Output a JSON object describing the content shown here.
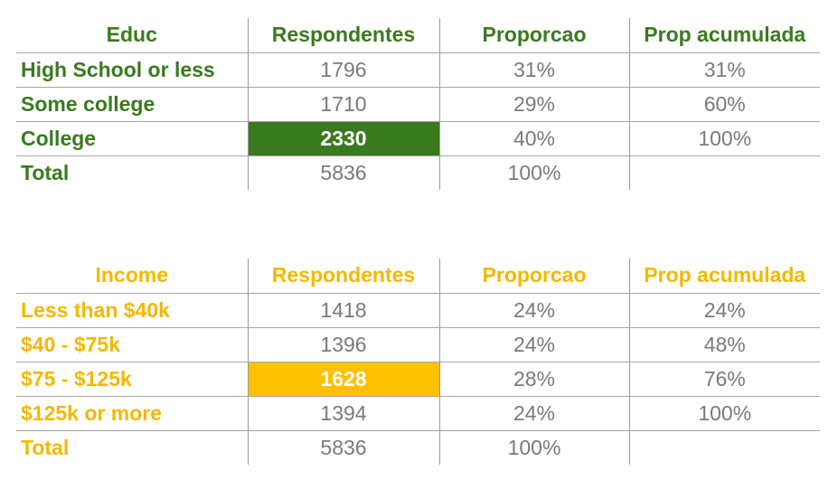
{
  "colors": {
    "educ_accent": "#3a7a1e",
    "income_accent": "#ffc000"
  },
  "educ_table": {
    "headers": [
      "Educ",
      "Respondentes",
      "Proporcao",
      "Prop acumulada"
    ],
    "rows": [
      [
        "High School or less",
        "1796",
        "31%",
        "31%"
      ],
      [
        "Some college",
        "1710",
        "29%",
        "60%"
      ],
      [
        "College",
        "2330",
        "40%",
        "100%"
      ],
      [
        "Total",
        "5836",
        "100%",
        ""
      ]
    ]
  },
  "income_table": {
    "headers": [
      "Income",
      "Respondentes",
      "Proporcao",
      "Prop acumulada"
    ],
    "rows": [
      [
        "Less than $40k",
        "1418",
        "24%",
        "24%"
      ],
      [
        "$40 - $75k",
        "1396",
        "24%",
        "48%"
      ],
      [
        "$75 - $125k",
        "1628",
        "28%",
        "76%"
      ],
      [
        "$125k or more",
        "1394",
        "24%",
        "100%"
      ],
      [
        "Total",
        "5836",
        "100%",
        ""
      ]
    ]
  }
}
